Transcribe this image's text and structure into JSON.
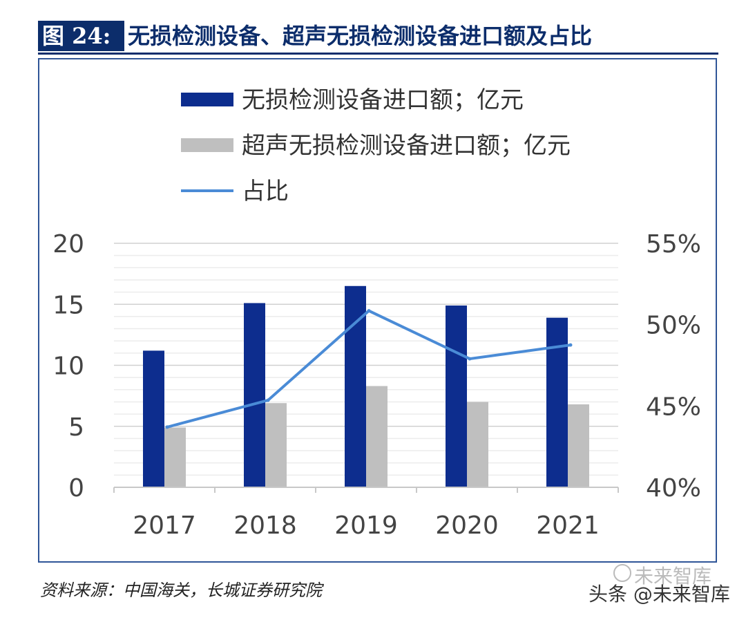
{
  "figure": {
    "number": "图 24:",
    "title": "无损检测设备、超声无损检测设备进口额及占比"
  },
  "source": "资料来源：中国海关，长城证券研究院",
  "watermark": {
    "text": "头条 @未来智库",
    "logo_text": "未来智库"
  },
  "chart_data": {
    "type": "bar",
    "categories": [
      "2017",
      "2018",
      "2019",
      "2020",
      "2021"
    ],
    "series": [
      {
        "name": "无损检测设备进口额；亿元",
        "type": "bar",
        "axis": "left",
        "color": "#0d2d8e",
        "values": [
          11.2,
          15.1,
          16.5,
          14.9,
          13.9
        ]
      },
      {
        "name": "超声无损检测设备进口额；亿元",
        "type": "bar",
        "axis": "left",
        "color": "#bfbfbf",
        "values": [
          4.9,
          6.9,
          8.3,
          7.0,
          6.8
        ]
      },
      {
        "name": "占比",
        "type": "line",
        "axis": "right",
        "color": "#4a8bd6",
        "values": [
          0.437,
          0.4535,
          0.5085,
          0.479,
          0.4875
        ]
      }
    ],
    "y_left": {
      "min": 0,
      "max": 20,
      "ticks": [
        0,
        5,
        10,
        15,
        20
      ],
      "tick_labels": [
        "0",
        "5",
        "10",
        "15",
        "20"
      ]
    },
    "y_right": {
      "min": 0.4,
      "max": 0.55,
      "ticks": [
        0.4,
        0.45,
        0.5,
        0.55
      ],
      "tick_labels": [
        "40%",
        "45%",
        "50%",
        "55%"
      ]
    },
    "legend_position": "top",
    "grid": true
  }
}
